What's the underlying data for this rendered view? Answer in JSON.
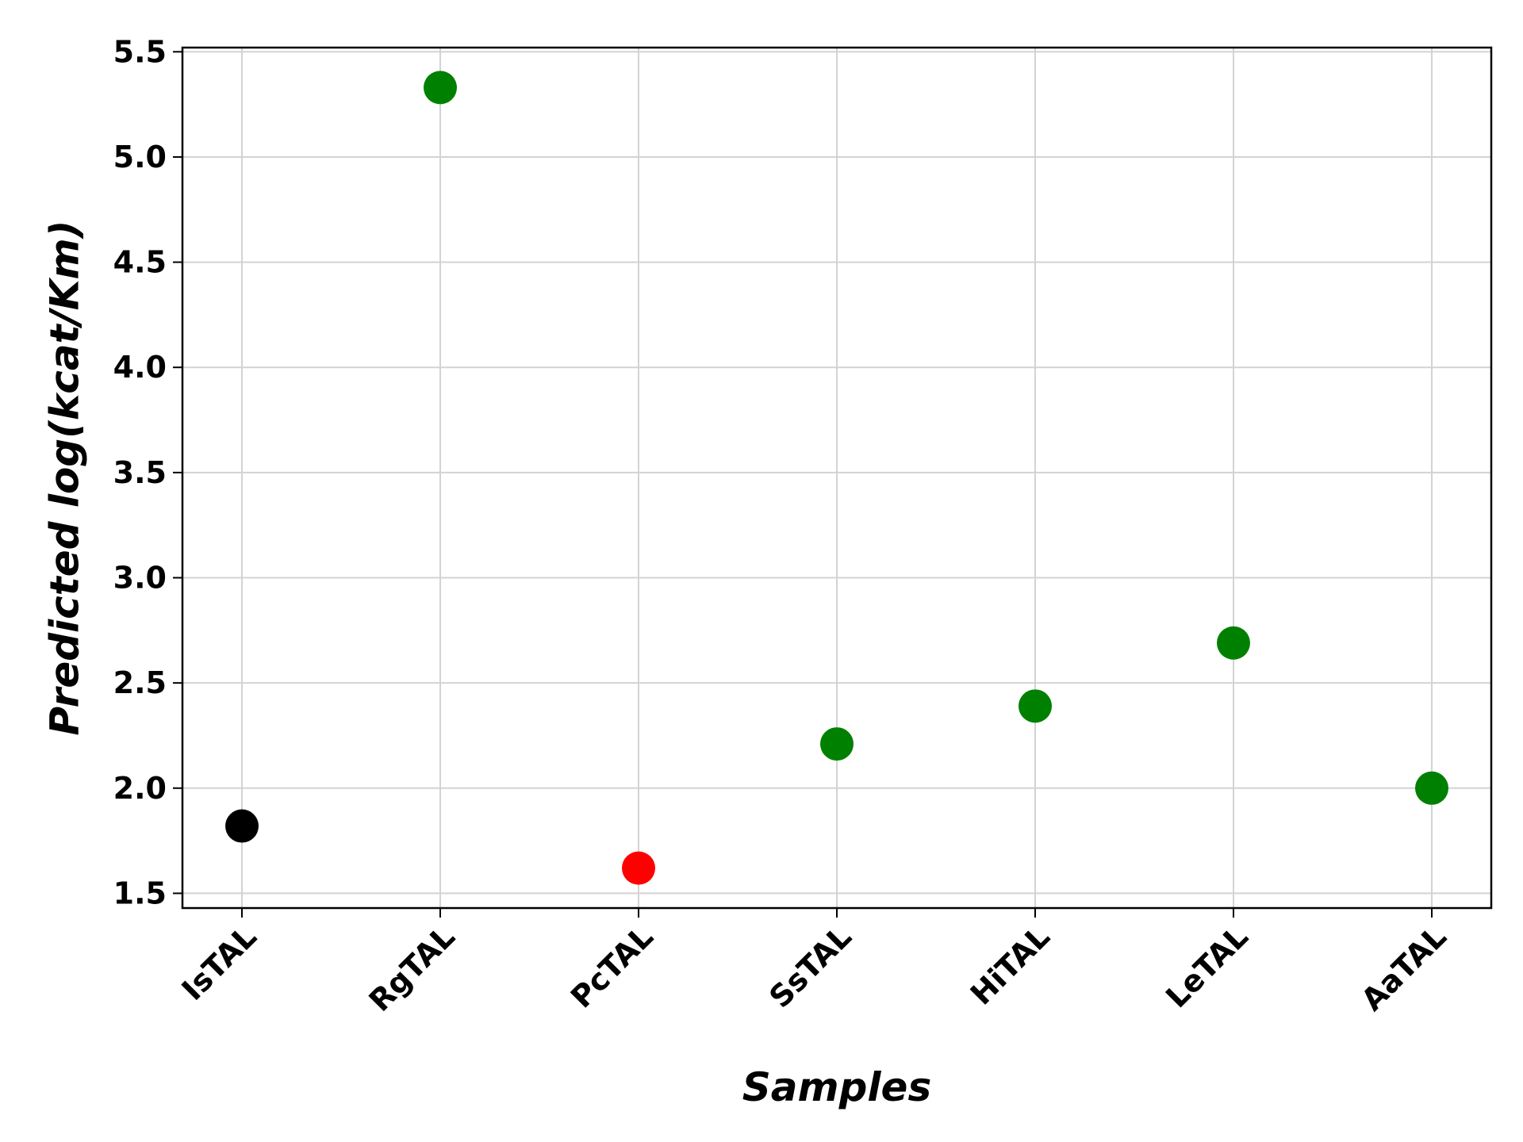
{
  "chart_data": {
    "type": "scatter",
    "title": "",
    "xlabel": "Samples",
    "ylabel": "Predicted log(kcat/Km)",
    "categories": [
      "IsTAL",
      "RgTAL",
      "PcTAL",
      "SsTAL",
      "HiTAL",
      "LeTAL",
      "AaTAL"
    ],
    "values": [
      1.82,
      5.33,
      1.62,
      2.21,
      2.39,
      2.69,
      2.0
    ],
    "colors": [
      "#000000",
      "#008000",
      "#ff0000",
      "#008000",
      "#008000",
      "#008000",
      "#008000"
    ],
    "ylim": [
      1.43,
      5.52
    ],
    "yticks": [
      "1.5",
      "2.0",
      "2.5",
      "3.0",
      "3.5",
      "4.0",
      "4.5",
      "5.0",
      "5.5"
    ],
    "grid": true,
    "legend": "none"
  }
}
